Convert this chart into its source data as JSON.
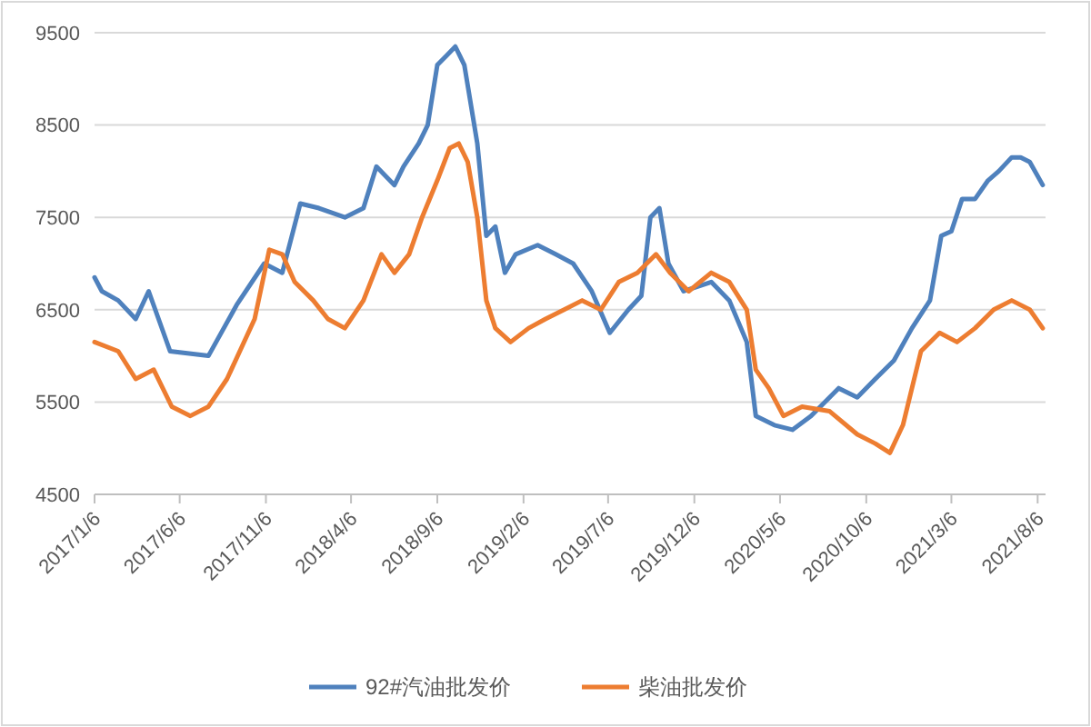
{
  "chart_data": {
    "type": "line",
    "legend": "bottom",
    "grid": "y",
    "ylim": [
      4500,
      9500
    ],
    "yticks": [
      4500,
      5500,
      6500,
      7500,
      8500,
      9500
    ],
    "xlim": [
      "2017-01-06",
      "2021-08-20"
    ],
    "xticks": [
      {
        "value": "2017-01-06",
        "label": "2017/1/6"
      },
      {
        "value": "2017-06-06",
        "label": "2017/6/6"
      },
      {
        "value": "2017-11-06",
        "label": "2017/11/6"
      },
      {
        "value": "2018-04-06",
        "label": "2018/4/6"
      },
      {
        "value": "2018-09-06",
        "label": "2018/9/6"
      },
      {
        "value": "2019-02-06",
        "label": "2019/2/6"
      },
      {
        "value": "2019-07-06",
        "label": "2019/7/6"
      },
      {
        "value": "2019-12-06",
        "label": "2019/12/6"
      },
      {
        "value": "2020-05-06",
        "label": "2020/5/6"
      },
      {
        "value": "2020-10-06",
        "label": "2020/10/6"
      },
      {
        "value": "2021-03-06",
        "label": "2021/3/6"
      },
      {
        "value": "2021-08-06",
        "label": "2021/8/6"
      }
    ],
    "series": [
      {
        "name": "92#汽油批发价",
        "color": "#4f81bd",
        "x": [
          "2017-01-06",
          "2017-01-19",
          "2017-02-17",
          "2017-03-20",
          "2017-04-12",
          "2017-05-20",
          "2017-07-27",
          "2017-09-15",
          "2017-11-03",
          "2017-12-05",
          "2018-01-06",
          "2018-02-08",
          "2018-03-26",
          "2018-04-28",
          "2018-05-21",
          "2018-06-22",
          "2018-07-08",
          "2018-08-04",
          "2018-08-20",
          "2018-09-06",
          "2018-09-22",
          "2018-10-08",
          "2018-10-24",
          "2018-11-16",
          "2018-12-02",
          "2018-12-18",
          "2019-01-04",
          "2019-01-23",
          "2019-03-03",
          "2019-04-04",
          "2019-05-05",
          "2019-06-07",
          "2019-07-09",
          "2019-08-11",
          "2019-09-03",
          "2019-09-19",
          "2019-10-05",
          "2019-10-21",
          "2019-11-17",
          "2020-01-05",
          "2020-02-06",
          "2020-03-08",
          "2020-03-24",
          "2020-04-26",
          "2020-05-28",
          "2020-06-30",
          "2020-08-18",
          "2020-09-20",
          "2020-10-22",
          "2020-11-24",
          "2020-12-26",
          "2021-01-27",
          "2021-02-16",
          "2021-03-06",
          "2021-03-25",
          "2021-04-17",
          "2021-05-10",
          "2021-05-29",
          "2021-06-21",
          "2021-07-07",
          "2021-07-23",
          "2021-08-15"
        ],
        "values": [
          6850,
          6700,
          6600,
          6400,
          6700,
          6050,
          6000,
          6550,
          7000,
          6900,
          7650,
          7600,
          7500,
          7600,
          8050,
          7850,
          8050,
          8300,
          8500,
          9150,
          9250,
          9350,
          9150,
          8300,
          7300,
          7400,
          6900,
          7100,
          7200,
          7100,
          7000,
          6700,
          6250,
          6500,
          6650,
          7500,
          7600,
          7000,
          6700,
          6800,
          6600,
          6150,
          5350,
          5250,
          5200,
          5350,
          5650,
          5550,
          5750,
          5950,
          6300,
          6600,
          7300,
          7350,
          7700,
          7700,
          7900,
          8000,
          8150,
          8150,
          8100,
          7850
        ]
      },
      {
        "name": "柴油批发价",
        "color": "#ed7d31",
        "x": [
          "2017-01-06",
          "2017-02-17",
          "2017-03-20",
          "2017-04-21",
          "2017-05-23",
          "2017-06-25",
          "2017-07-27",
          "2017-08-29",
          "2017-10-17",
          "2017-11-12",
          "2017-12-05",
          "2017-12-27",
          "2018-01-29",
          "2018-02-24",
          "2018-03-26",
          "2018-04-28",
          "2018-05-30",
          "2018-06-22",
          "2018-07-18",
          "2018-08-10",
          "2018-09-06",
          "2018-09-28",
          "2018-10-14",
          "2018-10-30",
          "2018-11-16",
          "2018-12-02",
          "2018-12-18",
          "2019-01-14",
          "2019-02-15",
          "2019-03-17",
          "2019-04-19",
          "2019-05-21",
          "2019-06-23",
          "2019-07-25",
          "2019-08-27",
          "2019-09-29",
          "2019-10-24",
          "2019-11-26",
          "2020-01-05",
          "2020-02-06",
          "2020-03-08",
          "2020-03-24",
          "2020-04-16",
          "2020-05-12",
          "2020-06-14",
          "2020-08-02",
          "2020-09-20",
          "2020-10-22",
          "2020-11-17",
          "2020-12-10",
          "2021-01-11",
          "2021-02-13",
          "2021-03-16",
          "2021-04-17",
          "2021-05-20",
          "2021-06-21",
          "2021-07-23",
          "2021-08-15"
        ],
        "values": [
          6150,
          6050,
          5750,
          5850,
          5450,
          5350,
          5450,
          5750,
          6400,
          7150,
          7100,
          6800,
          6600,
          6400,
          6300,
          6600,
          7100,
          6900,
          7100,
          7500,
          7900,
          8250,
          8300,
          8100,
          7500,
          6600,
          6300,
          6150,
          6300,
          6400,
          6500,
          6600,
          6500,
          6800,
          6900,
          7100,
          6900,
          6700,
          6900,
          6800,
          6500,
          5850,
          5650,
          5350,
          5450,
          5400,
          5150,
          5050,
          4950,
          5250,
          6050,
          6250,
          6150,
          6300,
          6500,
          6600,
          6500,
          6300
        ]
      }
    ]
  }
}
